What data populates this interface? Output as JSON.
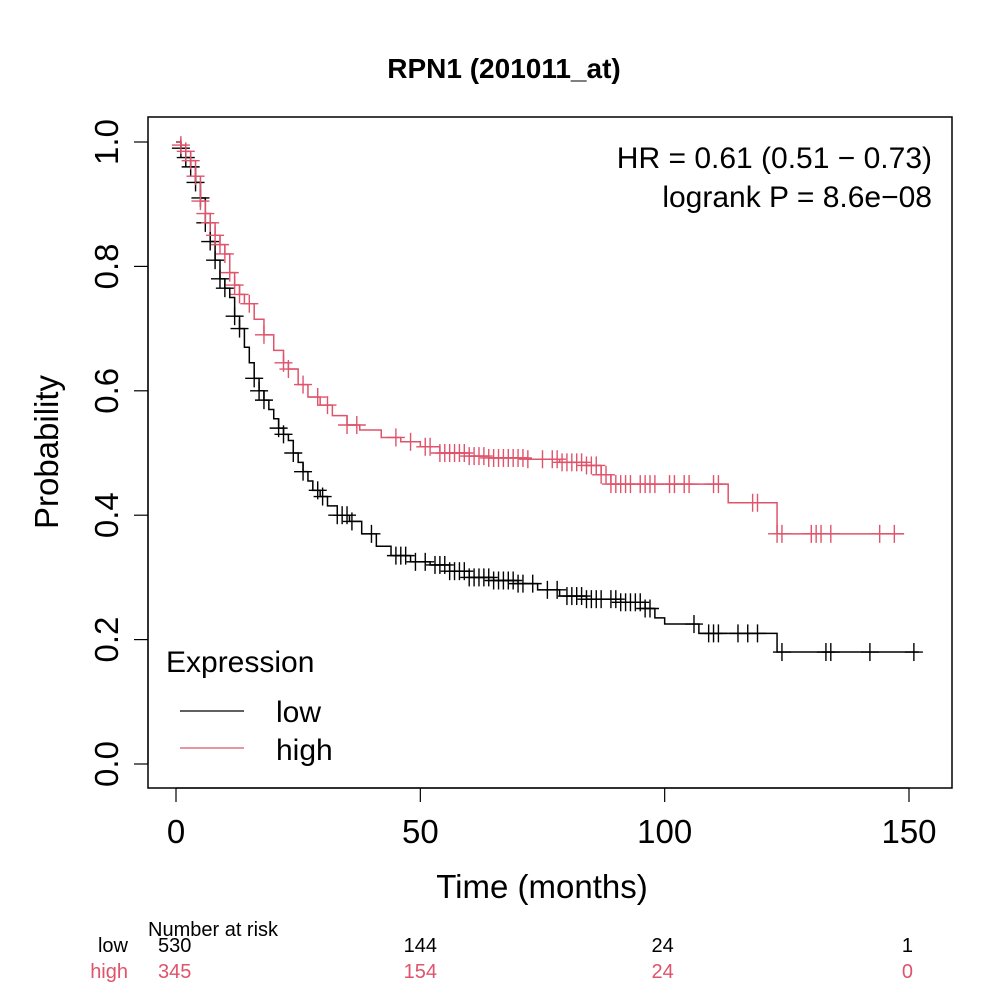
{
  "chart_data": {
    "type": "line",
    "subtype": "kaplan-meier",
    "title": "RPN1 (201011_at)",
    "xlabel": "Time (months)",
    "ylabel": "Probability",
    "xlim": [
      0,
      155
    ],
    "ylim": [
      0,
      1.0
    ],
    "xticks": [
      0,
      50,
      100,
      150
    ],
    "xtick_labels": [
      "0",
      "50",
      "100",
      "150"
    ],
    "yticks": [
      0.0,
      0.2,
      0.4,
      0.6,
      0.8,
      1.0
    ],
    "ytick_labels": [
      "0.0",
      "0.2",
      "0.4",
      "0.6",
      "0.8",
      "1.0"
    ],
    "grid": false,
    "annotations": [
      "HR = 0.61 (0.51 − 0.73)",
      "logrank P = 8.6e−08"
    ],
    "legend": {
      "title": "Expression",
      "placement": "bottom-left",
      "entries": [
        {
          "label": "low",
          "color": "#000000"
        },
        {
          "label": "high",
          "color": "#DF536B"
        }
      ]
    },
    "series": [
      {
        "name": "low",
        "color": "#000000",
        "steps": [
          [
            0,
            1.0
          ],
          [
            1,
            0.99
          ],
          [
            2,
            0.975
          ],
          [
            3,
            0.96
          ],
          [
            4,
            0.935
          ],
          [
            5,
            0.91
          ],
          [
            6,
            0.87
          ],
          [
            7,
            0.84
          ],
          [
            8,
            0.81
          ],
          [
            9,
            0.78
          ],
          [
            10,
            0.765
          ],
          [
            11,
            0.75
          ],
          [
            12,
            0.72
          ],
          [
            13,
            0.7
          ],
          [
            14,
            0.67
          ],
          [
            15,
            0.645
          ],
          [
            16,
            0.62
          ],
          [
            17,
            0.6
          ],
          [
            18,
            0.585
          ],
          [
            19,
            0.57
          ],
          [
            20,
            0.555
          ],
          [
            21,
            0.54
          ],
          [
            22,
            0.53
          ],
          [
            23,
            0.52
          ],
          [
            24,
            0.5
          ],
          [
            25,
            0.485
          ],
          [
            26,
            0.47
          ],
          [
            27,
            0.455
          ],
          [
            28,
            0.44
          ],
          [
            29.5,
            0.43
          ],
          [
            31,
            0.415
          ],
          [
            33,
            0.4
          ],
          [
            35.5,
            0.39
          ],
          [
            38,
            0.37
          ],
          [
            41,
            0.35
          ],
          [
            44,
            0.335
          ],
          [
            48,
            0.325
          ],
          [
            52,
            0.32
          ],
          [
            56,
            0.31
          ],
          [
            60,
            0.3
          ],
          [
            65,
            0.295
          ],
          [
            70,
            0.29
          ],
          [
            74,
            0.28
          ],
          [
            78.5,
            0.27
          ],
          [
            84,
            0.265
          ],
          [
            91,
            0.26
          ],
          [
            96,
            0.25
          ],
          [
            98,
            0.235
          ],
          [
            100,
            0.225
          ],
          [
            107,
            0.21
          ],
          [
            123,
            0.18
          ],
          [
            152,
            0.18
          ]
        ],
        "censor_times": [
          1,
          2,
          3,
          4,
          5,
          6,
          7,
          8,
          9,
          10,
          12,
          13,
          16,
          17,
          18,
          21,
          22,
          24,
          26,
          29,
          30,
          33,
          34,
          35,
          36,
          40,
          45,
          46,
          47,
          49,
          51,
          53,
          54,
          55,
          56,
          57,
          58,
          59,
          60,
          61,
          62,
          63,
          64,
          65,
          66,
          67,
          68,
          69,
          70,
          71,
          73,
          76,
          78,
          80,
          81,
          82,
          83,
          84,
          85,
          86,
          87,
          89,
          90,
          91,
          92,
          93,
          94,
          95,
          96,
          97,
          106,
          109,
          110,
          111,
          115,
          117,
          119,
          124,
          133,
          134,
          142,
          151
        ]
      },
      {
        "name": "high",
        "color": "#DF536B",
        "steps": [
          [
            0,
            1.0
          ],
          [
            1,
            0.995
          ],
          [
            2,
            0.985
          ],
          [
            3,
            0.97
          ],
          [
            4,
            0.945
          ],
          [
            5,
            0.905
          ],
          [
            6,
            0.885
          ],
          [
            7,
            0.87
          ],
          [
            8,
            0.85
          ],
          [
            9,
            0.835
          ],
          [
            10,
            0.82
          ],
          [
            11,
            0.79
          ],
          [
            12,
            0.77
          ],
          [
            13,
            0.755
          ],
          [
            14,
            0.74
          ],
          [
            16,
            0.715
          ],
          [
            18,
            0.69
          ],
          [
            20,
            0.665
          ],
          [
            22,
            0.645
          ],
          [
            23,
            0.635
          ],
          [
            25,
            0.61
          ],
          [
            27,
            0.59
          ],
          [
            29.5,
            0.577
          ],
          [
            32,
            0.56
          ],
          [
            35,
            0.545
          ],
          [
            37.6,
            0.537
          ],
          [
            42,
            0.525
          ],
          [
            46,
            0.518
          ],
          [
            50,
            0.51
          ],
          [
            54,
            0.5
          ],
          [
            60,
            0.495
          ],
          [
            64,
            0.492
          ],
          [
            72,
            0.49
          ],
          [
            78.5,
            0.485
          ],
          [
            84,
            0.48
          ],
          [
            87,
            0.465
          ],
          [
            89,
            0.45
          ],
          [
            113,
            0.42
          ],
          [
            123,
            0.37
          ],
          [
            149,
            0.37
          ]
        ],
        "censor_times": [
          1,
          2,
          3,
          4,
          5,
          6,
          7,
          8,
          9,
          10,
          11,
          12,
          13,
          15,
          18,
          22,
          23,
          26,
          29,
          31,
          35,
          37,
          45,
          48,
          51,
          52,
          54,
          55,
          56,
          57,
          58,
          59,
          60,
          61,
          62,
          63,
          64,
          65,
          66,
          67,
          68,
          69,
          70,
          71,
          72,
          75,
          77,
          78,
          79,
          80,
          81,
          82,
          83,
          84,
          85,
          86,
          87,
          88,
          89,
          90,
          91,
          92,
          93,
          95,
          96,
          97,
          98,
          101,
          102,
          104,
          105,
          110,
          111,
          118,
          119,
          123,
          124,
          130,
          131,
          132,
          134,
          144,
          147
        ]
      }
    ],
    "risk_table": {
      "header": "Number at risk",
      "times": [
        0,
        50,
        100,
        150
      ],
      "rows": [
        {
          "label": "low",
          "color": "#000000",
          "values": [
            "530",
            "144",
            "24",
            "1"
          ]
        },
        {
          "label": "high",
          "color": "#DF536B",
          "values": [
            "345",
            "154",
            "24",
            "0"
          ]
        }
      ]
    }
  }
}
